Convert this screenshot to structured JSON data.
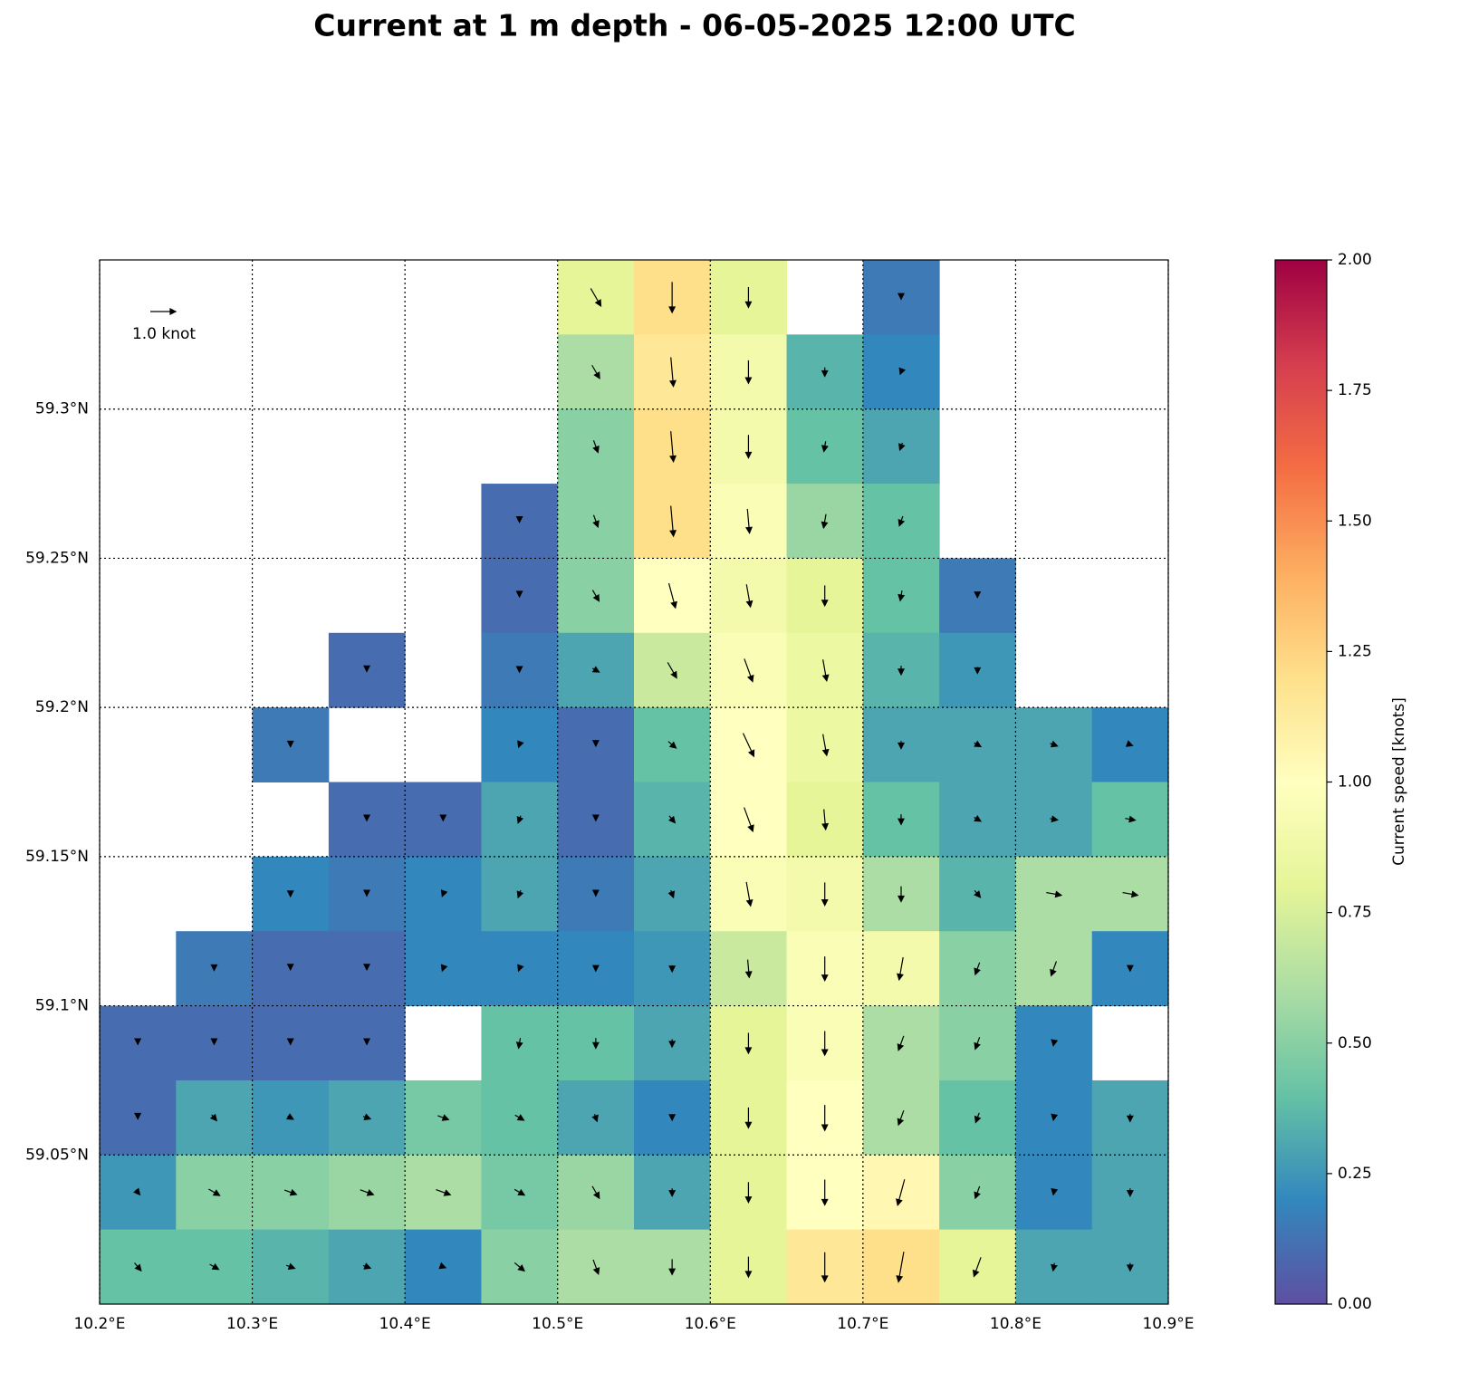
{
  "chart_data": {
    "type": "heatmap",
    "title": "Current at 1 m depth - 06-05-2025 12:00 UTC",
    "colorbar_label": "Current speed [knots]",
    "xlim": [
      10.2,
      10.9
    ],
    "ylim": [
      59.0,
      59.35
    ],
    "xticks": [
      {
        "value": 10.2,
        "label": "10.2°E"
      },
      {
        "value": 10.3,
        "label": "10.3°E"
      },
      {
        "value": 10.4,
        "label": "10.4°E"
      },
      {
        "value": 10.5,
        "label": "10.5°E"
      },
      {
        "value": 10.6,
        "label": "10.6°E"
      },
      {
        "value": 10.7,
        "label": "10.7°E"
      },
      {
        "value": 10.8,
        "label": "10.8°E"
      },
      {
        "value": 10.9,
        "label": "10.9°E"
      }
    ],
    "yticks": [
      {
        "value": 59.05,
        "label": "59.05°N"
      },
      {
        "value": 59.1,
        "label": "59.1°N"
      },
      {
        "value": 59.15,
        "label": "59.15°N"
      },
      {
        "value": 59.2,
        "label": "59.2°N"
      },
      {
        "value": 59.25,
        "label": "59.25°N"
      },
      {
        "value": 59.3,
        "label": "59.3°N"
      }
    ],
    "grid": true,
    "clim": [
      0,
      2
    ],
    "cticks": [
      {
        "value": 0,
        "label": "0.00"
      },
      {
        "value": 0.25,
        "label": "0.25"
      },
      {
        "value": 0.5,
        "label": "0.50"
      },
      {
        "value": 0.75,
        "label": "0.75"
      },
      {
        "value": 1,
        "label": "1.00"
      },
      {
        "value": 1.25,
        "label": "1.25"
      },
      {
        "value": 1.5,
        "label": "1.50"
      },
      {
        "value": 1.75,
        "label": "1.75"
      },
      {
        "value": 2,
        "label": "2.00"
      }
    ],
    "colormap": [
      "#5e4fa2",
      "#3288bd",
      "#66c2a5",
      "#abdda4",
      "#e6f598",
      "#ffffbf",
      "#fee08b",
      "#fdae61",
      "#f46d43",
      "#d53e4f",
      "#9e0142"
    ],
    "reference_arrow": {
      "value": 1.0,
      "label": "1.0 knot"
    },
    "lon": [
      10.225,
      10.275,
      10.325,
      10.375,
      10.425,
      10.475,
      10.525,
      10.575,
      10.625,
      10.675,
      10.725,
      10.775,
      10.825,
      10.875
    ],
    "lat": [
      59.3375,
      59.3125,
      59.2875,
      59.2625,
      59.2375,
      59.2125,
      59.1875,
      59.1625,
      59.1375,
      59.1125,
      59.0875,
      59.0625,
      59.0375,
      59.0125
    ],
    "speed": [
      [
        null,
        null,
        null,
        null,
        null,
        null,
        0.8,
        1.2,
        0.8,
        null,
        0.15,
        null,
        null,
        null
      ],
      [
        null,
        null,
        null,
        null,
        null,
        null,
        0.6,
        1.15,
        0.9,
        0.35,
        0.2,
        null,
        null,
        null
      ],
      [
        null,
        null,
        null,
        null,
        null,
        null,
        0.5,
        1.2,
        0.9,
        0.4,
        0.3,
        null,
        null,
        null
      ],
      [
        null,
        null,
        null,
        null,
        null,
        0.1,
        0.5,
        1.2,
        0.95,
        0.55,
        0.4,
        null,
        null,
        null
      ],
      [
        null,
        null,
        null,
        null,
        null,
        0.1,
        0.5,
        1.0,
        0.9,
        0.8,
        0.4,
        0.15,
        null,
        null
      ],
      [
        null,
        null,
        null,
        0.1,
        null,
        0.15,
        0.3,
        0.7,
        0.95,
        0.85,
        0.35,
        0.25,
        null,
        null
      ],
      [
        null,
        null,
        0.15,
        null,
        null,
        0.2,
        0.1,
        0.4,
        1.0,
        0.85,
        0.3,
        0.3,
        0.3,
        0.2
      ],
      [
        null,
        null,
        null,
        0.1,
        0.1,
        0.3,
        0.1,
        0.35,
        1.0,
        0.8,
        0.4,
        0.3,
        0.3,
        0.4
      ],
      [
        null,
        null,
        0.2,
        0.15,
        0.2,
        0.3,
        0.15,
        0.3,
        0.95,
        0.9,
        0.6,
        0.35,
        0.6,
        0.6
      ],
      [
        null,
        0.15,
        0.1,
        0.1,
        0.2,
        0.2,
        0.2,
        0.25,
        0.7,
        0.95,
        0.9,
        0.5,
        0.6,
        0.2
      ],
      [
        0.1,
        0.1,
        0.1,
        0.1,
        null,
        0.4,
        0.4,
        0.3,
        0.8,
        0.95,
        0.6,
        0.5,
        0.2,
        null
      ],
      [
        0.1,
        0.3,
        0.25,
        0.3,
        0.45,
        0.4,
        0.3,
        0.2,
        0.8,
        1.0,
        0.6,
        0.4,
        0.2,
        0.3
      ],
      [
        0.25,
        0.5,
        0.5,
        0.55,
        0.6,
        0.45,
        0.55,
        0.3,
        0.8,
        1.0,
        1.05,
        0.5,
        0.2,
        0.3
      ],
      [
        0.4,
        0.4,
        0.35,
        0.3,
        0.2,
        0.5,
        0.6,
        0.6,
        0.8,
        1.15,
        1.2,
        0.8,
        0.3,
        0.3
      ]
    ],
    "direction_deg": [
      [
        null,
        null,
        null,
        null,
        null,
        null,
        150,
        180,
        180,
        null,
        180,
        null,
        null,
        null
      ],
      [
        null,
        null,
        null,
        null,
        null,
        null,
        150,
        175,
        180,
        180,
        200,
        null,
        null,
        null
      ],
      [
        null,
        null,
        null,
        null,
        null,
        null,
        160,
        175,
        180,
        190,
        200,
        null,
        null,
        null
      ],
      [
        null,
        null,
        null,
        null,
        null,
        180,
        160,
        175,
        175,
        190,
        200,
        null,
        null,
        null
      ],
      [
        null,
        null,
        null,
        null,
        null,
        180,
        150,
        165,
        170,
        180,
        190,
        180,
        null,
        null
      ],
      [
        null,
        null,
        null,
        180,
        null,
        180,
        120,
        150,
        160,
        170,
        180,
        180,
        null,
        null
      ],
      [
        null,
        null,
        180,
        null,
        null,
        200,
        180,
        130,
        155,
        170,
        180,
        120,
        110,
        110
      ],
      [
        null,
        null,
        null,
        180,
        180,
        200,
        180,
        140,
        160,
        175,
        180,
        120,
        100,
        100
      ],
      [
        null,
        null,
        180,
        180,
        200,
        200,
        180,
        160,
        170,
        180,
        180,
        140,
        100,
        100
      ],
      [
        null,
        180,
        180,
        180,
        200,
        200,
        180,
        180,
        175,
        180,
        190,
        200,
        200,
        180
      ],
      [
        180,
        180,
        180,
        180,
        null,
        190,
        180,
        180,
        180,
        180,
        200,
        200,
        190,
        null
      ],
      [
        180,
        140,
        120,
        110,
        110,
        120,
        160,
        180,
        180,
        180,
        200,
        200,
        190,
        180
      ],
      [
        140,
        120,
        110,
        110,
        110,
        120,
        150,
        180,
        180,
        180,
        195,
        200,
        190,
        180
      ],
      [
        140,
        120,
        110,
        110,
        110,
        130,
        160,
        180,
        180,
        180,
        190,
        200,
        190,
        180
      ]
    ]
  }
}
